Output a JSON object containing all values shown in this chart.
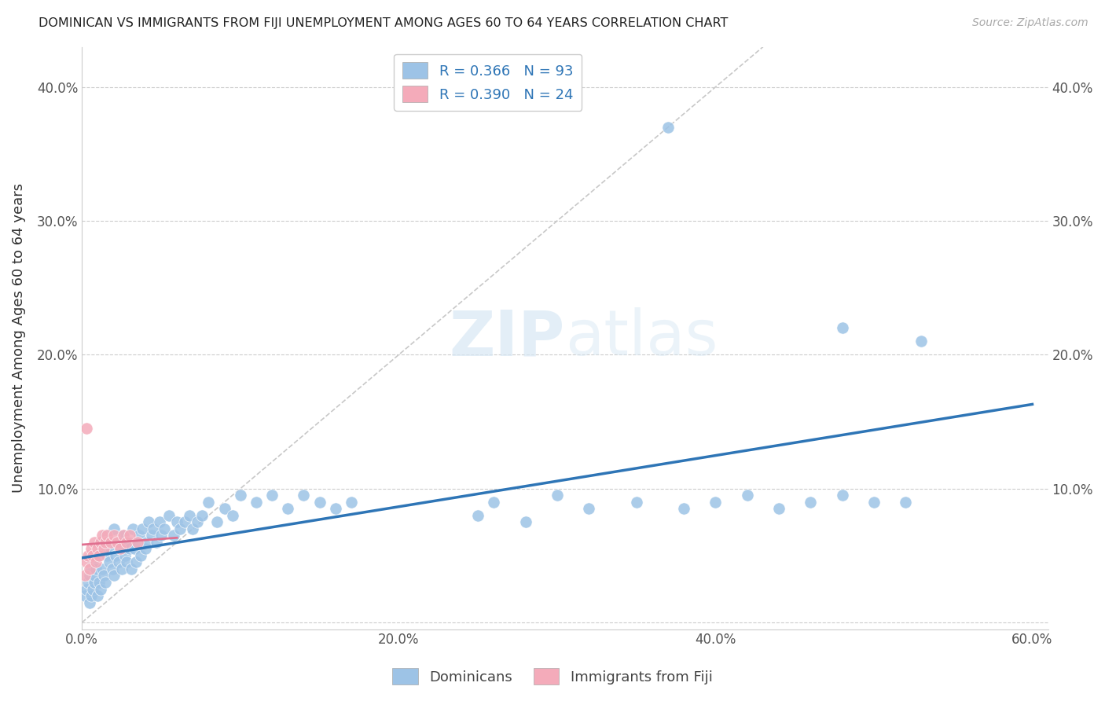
{
  "title": "DOMINICAN VS IMMIGRANTS FROM FIJI UNEMPLOYMENT AMONG AGES 60 TO 64 YEARS CORRELATION CHART",
  "source": "Source: ZipAtlas.com",
  "ylabel_label": "Unemployment Among Ages 60 to 64 years",
  "xlim": [
    0,
    0.61
  ],
  "ylim": [
    -0.005,
    0.43
  ],
  "dominicans_R": 0.366,
  "dominicans_N": 93,
  "fiji_R": 0.39,
  "fiji_N": 24,
  "blue_color": "#9DC3E6",
  "pink_color": "#F4ABBA",
  "blue_line_color": "#2E75B6",
  "pink_line_color": "#E07090",
  "diagonal_color": "#C8C8C8",
  "background_color": "#FFFFFF",
  "dom_x": [
    0.002,
    0.003,
    0.004,
    0.005,
    0.005,
    0.006,
    0.006,
    0.007,
    0.007,
    0.008,
    0.008,
    0.009,
    0.01,
    0.01,
    0.011,
    0.011,
    0.012,
    0.012,
    0.013,
    0.014,
    0.015,
    0.015,
    0.016,
    0.017,
    0.018,
    0.019,
    0.02,
    0.02,
    0.021,
    0.022,
    0.023,
    0.024,
    0.025,
    0.026,
    0.027,
    0.028,
    0.029,
    0.03,
    0.031,
    0.032,
    0.033,
    0.034,
    0.035,
    0.036,
    0.037,
    0.038,
    0.04,
    0.041,
    0.042,
    0.044,
    0.045,
    0.047,
    0.049,
    0.05,
    0.052,
    0.055,
    0.058,
    0.06,
    0.062,
    0.065,
    0.068,
    0.07,
    0.073,
    0.076,
    0.08,
    0.085,
    0.09,
    0.095,
    0.1,
    0.11,
    0.12,
    0.13,
    0.14,
    0.15,
    0.16,
    0.17,
    0.25,
    0.26,
    0.28,
    0.3,
    0.32,
    0.35,
    0.38,
    0.4,
    0.42,
    0.44,
    0.46,
    0.48,
    0.5,
    0.52,
    0.37,
    0.48,
    0.53
  ],
  "dom_y": [
    0.02,
    0.025,
    0.03,
    0.015,
    0.035,
    0.02,
    0.04,
    0.025,
    0.045,
    0.03,
    0.035,
    0.04,
    0.02,
    0.05,
    0.03,
    0.055,
    0.025,
    0.06,
    0.04,
    0.035,
    0.03,
    0.065,
    0.05,
    0.045,
    0.055,
    0.04,
    0.035,
    0.07,
    0.05,
    0.06,
    0.045,
    0.055,
    0.04,
    0.065,
    0.05,
    0.045,
    0.06,
    0.055,
    0.04,
    0.07,
    0.055,
    0.045,
    0.06,
    0.065,
    0.05,
    0.07,
    0.055,
    0.06,
    0.075,
    0.065,
    0.07,
    0.06,
    0.075,
    0.065,
    0.07,
    0.08,
    0.065,
    0.075,
    0.07,
    0.075,
    0.08,
    0.07,
    0.075,
    0.08,
    0.09,
    0.075,
    0.085,
    0.08,
    0.095,
    0.09,
    0.095,
    0.085,
    0.095,
    0.09,
    0.085,
    0.09,
    0.08,
    0.09,
    0.075,
    0.095,
    0.085,
    0.09,
    0.085,
    0.09,
    0.095,
    0.085,
    0.09,
    0.095,
    0.09,
    0.09,
    0.37,
    0.22,
    0.21
  ],
  "fiji_x": [
    0.002,
    0.003,
    0.004,
    0.005,
    0.006,
    0.007,
    0.008,
    0.009,
    0.01,
    0.011,
    0.012,
    0.013,
    0.014,
    0.015,
    0.016,
    0.018,
    0.02,
    0.022,
    0.024,
    0.026,
    0.028,
    0.03,
    0.035,
    0.003
  ],
  "fiji_y": [
    0.035,
    0.045,
    0.05,
    0.04,
    0.055,
    0.05,
    0.06,
    0.045,
    0.055,
    0.05,
    0.06,
    0.065,
    0.055,
    0.06,
    0.065,
    0.06,
    0.065,
    0.06,
    0.055,
    0.065,
    0.06,
    0.065,
    0.06,
    0.145
  ]
}
